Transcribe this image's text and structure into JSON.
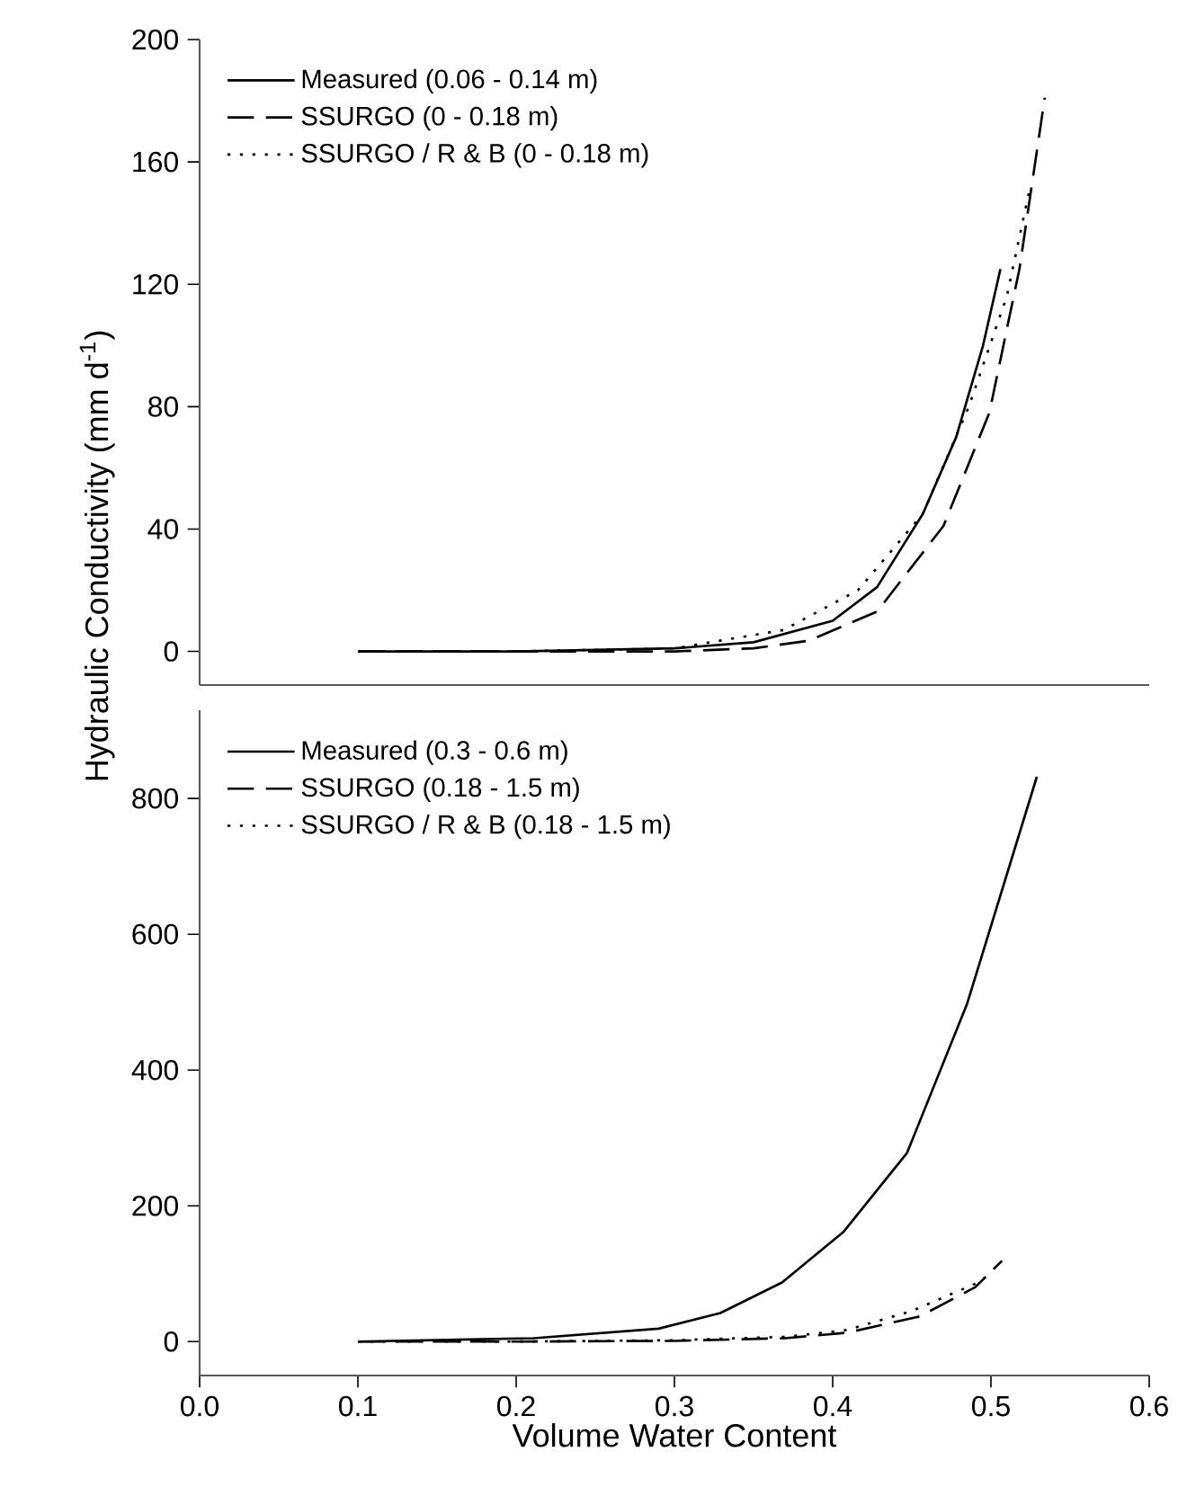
{
  "chart_data": [
    {
      "type": "line",
      "ylabel": "Hydraulic Conductivity (mm d$^{-1}$)",
      "xlim": [
        0,
        0.6
      ],
      "ylim": [
        -11,
        200
      ],
      "yticks": [
        0,
        40,
        80,
        120,
        160,
        200
      ],
      "tick_labels": "y",
      "legend": "top left",
      "series": [
        {
          "name": "Measured (0.06 - 0.14 m)",
          "color": "#000000",
          "line_style": "solid",
          "x": [
            0.1,
            0.2,
            0.3,
            0.35,
            0.4,
            0.428,
            0.457,
            0.478,
            0.495,
            0.506
          ],
          "values": [
            0,
            0,
            1,
            3,
            10,
            21,
            45,
            70,
            100,
            125
          ]
        },
        {
          "name": "SSURGO (0 - 0.18 m)",
          "color": "#000000",
          "line_style": "dashed",
          "x": [
            0.1,
            0.2,
            0.3,
            0.35,
            0.385,
            0.428,
            0.47,
            0.499,
            0.518,
            0.534
          ],
          "values": [
            0,
            0,
            0,
            1,
            3.5,
            13,
            41,
            78,
            125,
            181
          ]
        },
        {
          "name": "SSURGO / R & B (0 - 0.18 m)",
          "color": "#000000",
          "line_style": "dotted",
          "x": [
            0.1,
            0.2,
            0.3,
            0.369,
            0.416,
            0.457,
            0.486,
            0.51,
            0.524
          ],
          "values": [
            0,
            0,
            1,
            7,
            20,
            45,
            80,
            116,
            150
          ]
        }
      ]
    },
    {
      "type": "line",
      "xlabel": "Volume Water Content",
      "xlim": [
        0,
        0.6
      ],
      "ylim": [
        -50,
        930
      ],
      "xticks": [
        {
          "value": 0,
          "label": "0.0"
        },
        0.1,
        0.2,
        0.3,
        0.4,
        0.5,
        0.6
      ],
      "yticks": [
        0,
        200,
        400,
        600,
        800
      ],
      "legend": "top left",
      "series": [
        {
          "name": "Measured (0.3 - 0.6 m)",
          "color": "#000000",
          "line_style": "solid",
          "x": [
            0.1,
            0.211,
            0.29,
            0.329,
            0.368,
            0.407,
            0.447,
            0.485,
            0.529
          ],
          "values": [
            0,
            5,
            19,
            42,
            87,
            162,
            278,
            498,
            832
          ]
        },
        {
          "name": "SSURGO (0.18 - 1.5 m)",
          "color": "#000000",
          "line_style": "dashed",
          "x": [
            0.1,
            0.2,
            0.3,
            0.37,
            0.409,
            0.455,
            0.49,
            0.507
          ],
          "values": [
            0,
            0,
            1,
            5,
            13,
            37,
            80,
            119
          ]
        },
        {
          "name": "SSURGO / R & B (0.18 - 1.5 m)",
          "color": "#000000",
          "line_style": "dotted",
          "x": [
            0.1,
            0.2,
            0.3,
            0.37,
            0.409,
            0.45,
            0.49,
            0.5
          ],
          "values": [
            0,
            0,
            2,
            7,
            17,
            45,
            85,
            100
          ]
        }
      ]
    }
  ]
}
